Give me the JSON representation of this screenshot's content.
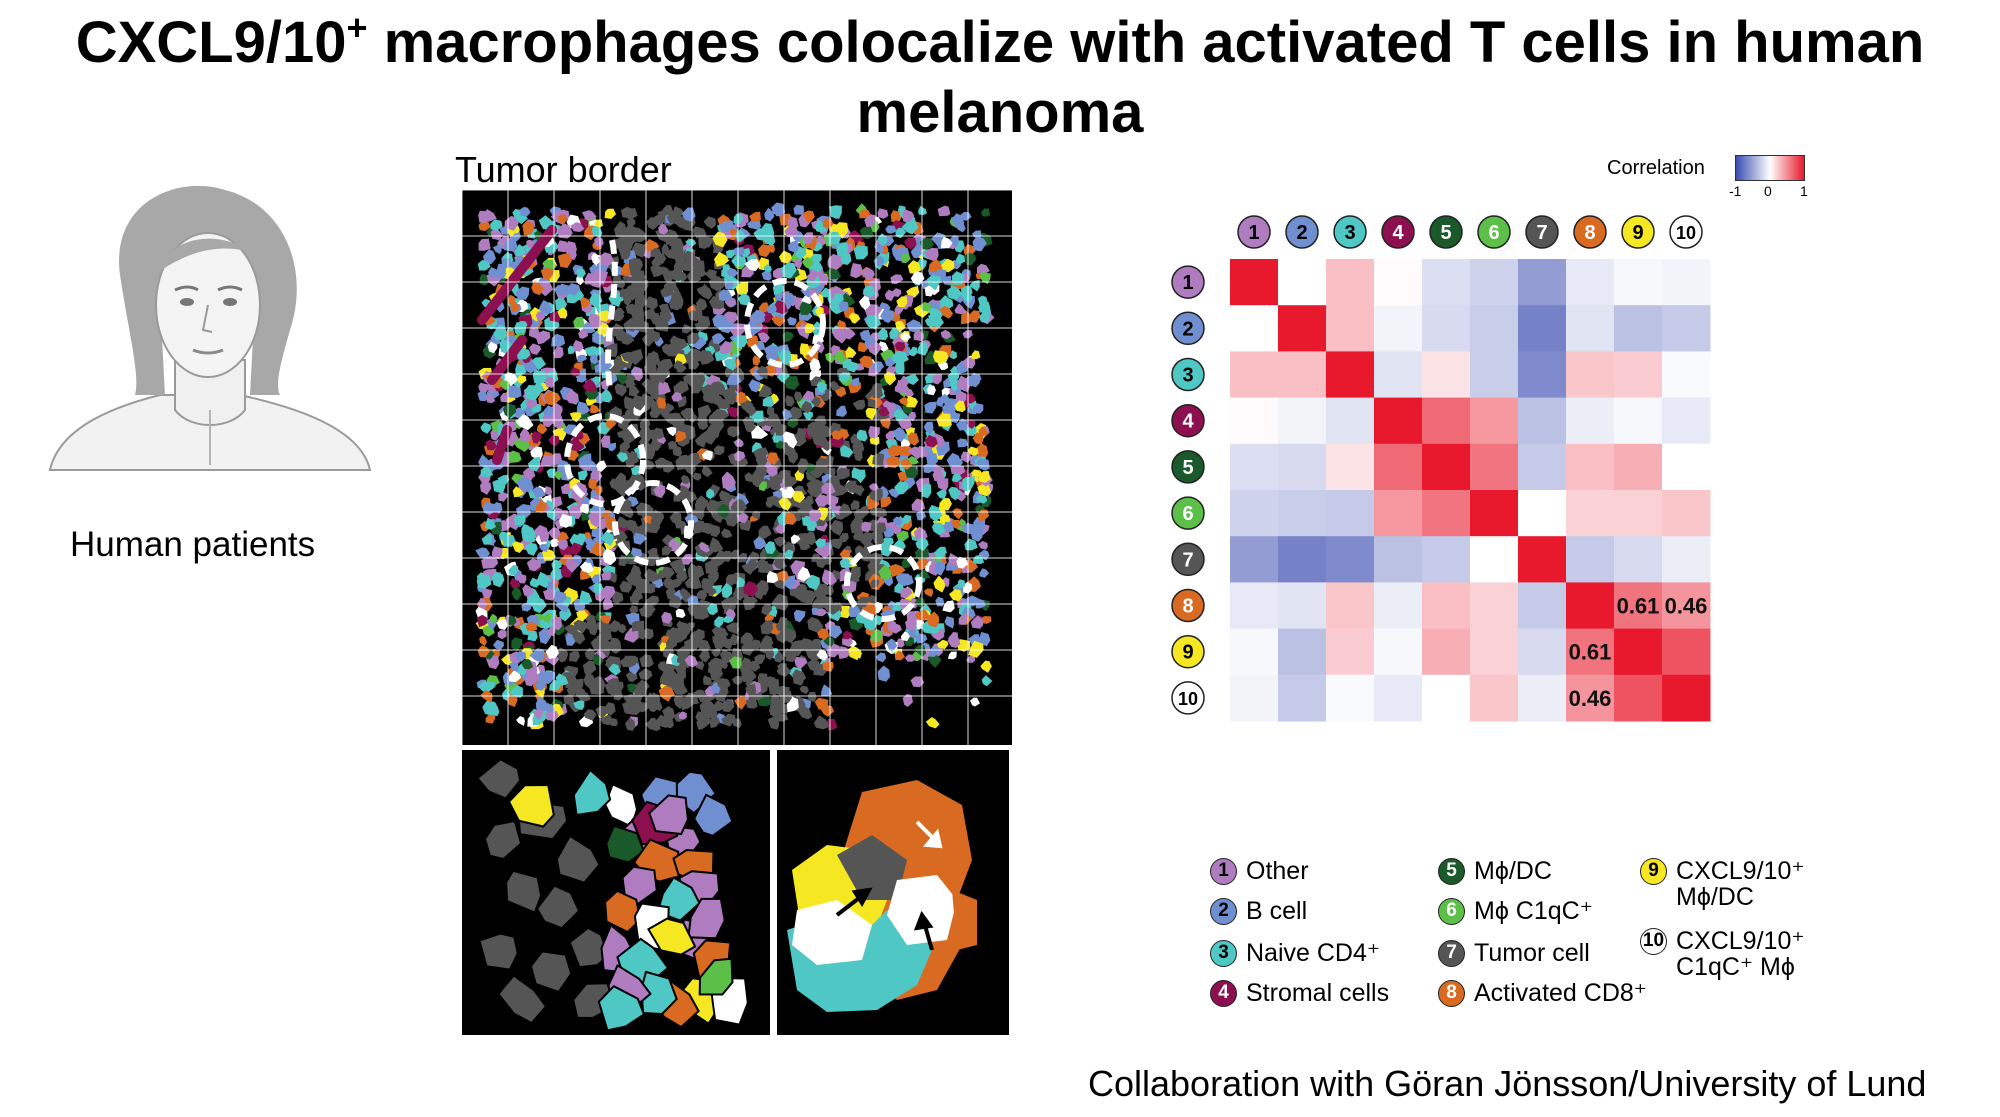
{
  "slide": {
    "title_pre": "CXCL9/10",
    "title_sup": "+",
    "title_post": " macrophages colocalize with activated T cells in human",
    "title_line2": "melanoma",
    "patients_label": "Human patients",
    "tumor_border_label": "Tumor border",
    "collaboration": "Collaboration with Göran Jönsson/University of Lund"
  },
  "colorbar": {
    "title": "Correlation",
    "ticks": [
      "-1",
      "0",
      "1"
    ],
    "low_color": "#3a4db0",
    "mid_color": "#ffffff",
    "high_color": "#e8192c"
  },
  "cell_types": [
    {
      "num": "1",
      "name": "Other",
      "color": "#b07cc0",
      "text": "#000000"
    },
    {
      "num": "2",
      "name": "B cell",
      "color": "#6f8fd0",
      "text": "#000000"
    },
    {
      "num": "3",
      "name": "Naive CD4⁺",
      "color": "#4fc7c4",
      "text": "#000000"
    },
    {
      "num": "4",
      "name": "Stromal cells",
      "color": "#8c1050",
      "text": "#ffffff"
    },
    {
      "num": "5",
      "name": "Mϕ/DC",
      "color": "#1a5a2a",
      "text": "#ffffff"
    },
    {
      "num": "6",
      "name": "Mϕ C1qC⁺",
      "color": "#5cbf48",
      "text": "#ffffff"
    },
    {
      "num": "7",
      "name": "Tumor cell",
      "color": "#555555",
      "text": "#ffffff"
    },
    {
      "num": "8",
      "name": "Activated CD8⁺",
      "color": "#d86a22",
      "text": "#ffffff"
    },
    {
      "num": "9",
      "name": "CXCL9/10⁺ Mϕ/DC",
      "name_lines": [
        "CXCL9/10⁺",
        "Mϕ/DC"
      ],
      "color": "#f5e822",
      "text": "#000000"
    },
    {
      "num": "10",
      "name": "CXCL9/10⁺ C1qC⁺ Mϕ",
      "name_lines": [
        "CXCL9/10⁺",
        "C1qC⁺ Mϕ"
      ],
      "color": "#ffffff",
      "text": "#000000"
    }
  ],
  "chart_data": {
    "type": "heatmap",
    "row_labels": [
      "1",
      "2",
      "3",
      "4",
      "5",
      "6",
      "7",
      "8",
      "9",
      "10"
    ],
    "col_labels": [
      "1",
      "2",
      "3",
      "4",
      "5",
      "6",
      "7",
      "8",
      "9",
      "10"
    ],
    "value_range": [
      -1,
      1
    ],
    "values": [
      [
        1.0,
        0.0,
        0.28,
        0.02,
        -0.18,
        -0.25,
        -0.55,
        -0.12,
        -0.04,
        -0.06
      ],
      [
        0.0,
        1.0,
        0.28,
        -0.06,
        -0.2,
        -0.28,
        -0.7,
        -0.15,
        -0.35,
        -0.3
      ],
      [
        0.28,
        0.28,
        1.0,
        -0.15,
        0.12,
        -0.28,
        -0.65,
        0.25,
        0.22,
        -0.03
      ],
      [
        0.02,
        -0.06,
        -0.15,
        1.0,
        0.65,
        0.45,
        -0.35,
        -0.1,
        -0.04,
        -0.12
      ],
      [
        -0.18,
        -0.2,
        0.12,
        0.65,
        1.0,
        0.6,
        -0.3,
        0.28,
        0.35,
        0.0
      ],
      [
        -0.25,
        -0.28,
        -0.3,
        0.45,
        0.6,
        1.0,
        0.0,
        0.2,
        0.2,
        0.25
      ],
      [
        -0.55,
        -0.7,
        -0.65,
        -0.35,
        -0.3,
        0.0,
        1.0,
        -0.3,
        -0.2,
        -0.1
      ],
      [
        -0.12,
        -0.15,
        0.25,
        -0.1,
        0.28,
        0.2,
        -0.3,
        1.0,
        0.61,
        0.46
      ],
      [
        -0.04,
        -0.35,
        0.22,
        -0.04,
        0.35,
        0.2,
        -0.2,
        0.61,
        1.0,
        0.75
      ],
      [
        -0.06,
        -0.3,
        -0.03,
        -0.12,
        0.0,
        0.25,
        -0.1,
        0.46,
        0.75,
        1.0
      ]
    ],
    "annotations": [
      {
        "row": 7,
        "col": 8,
        "text": "0.61"
      },
      {
        "row": 7,
        "col": 9,
        "text": "0.46"
      },
      {
        "row": 8,
        "col": 7,
        "text": "0.61"
      },
      {
        "row": 9,
        "col": 7,
        "text": "0.46"
      }
    ]
  }
}
